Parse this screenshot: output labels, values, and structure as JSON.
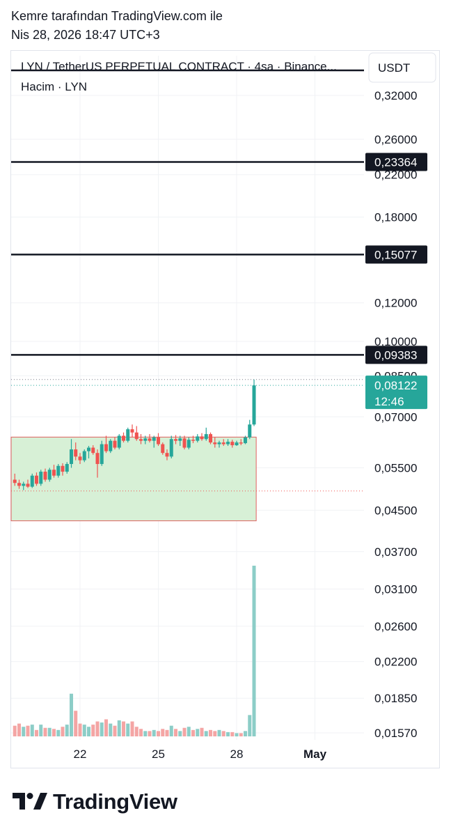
{
  "header": {
    "line1": "Kemre tarafından TradingView.com ile",
    "line2": "Nis 28, 2026 18:47 UTC+3"
  },
  "chart_meta": {
    "symbol_line": "LYN / TetherUS PERPETUAL CONTRACT · 4sa · Binance...",
    "volume_line": "Hacim · LYN",
    "currency": "USDT",
    "brand": "TradingView"
  },
  "colors": {
    "up": "#26a69a",
    "down": "#ef5350",
    "up_volume": "#8ccdc7",
    "down_volume": "#f4a5a4",
    "range_fill": "#d7f0d6",
    "range_border": "#e06060",
    "level_line": "#131722",
    "last_price_bg": "#26a69a"
  },
  "chart_data": {
    "type": "candlestick",
    "y_scale": "log",
    "price_ticks": [
      "0,32000",
      "0,26000",
      "0,22000",
      "0,18000",
      "0,12000",
      "0,10000",
      "0,08500",
      "0,07000",
      "0,05500",
      "0,04500",
      "0,03700",
      "0,03100",
      "0,02600",
      "0,02200",
      "0,01850",
      "0,01570"
    ],
    "price_tick_values": [
      0.32,
      0.26,
      0.22,
      0.18,
      0.12,
      0.1,
      0.085,
      0.07,
      0.055,
      0.045,
      0.037,
      0.031,
      0.026,
      0.022,
      0.0185,
      0.0157
    ],
    "x_ticks": [
      "22",
      "25",
      "28",
      "May"
    ],
    "x_tick_days": [
      22,
      25,
      28,
      31
    ],
    "horizontal_levels": [
      {
        "value": 0.23364,
        "label": "0,23364"
      },
      {
        "value": 0.15077,
        "label": "0,15077"
      },
      {
        "value": 0.09383,
        "label": "0,09383"
      }
    ],
    "last_price": {
      "value": 0.08122,
      "label": "0,08122",
      "countdown": "12:46"
    },
    "session_high_line": 0.0835,
    "range_box": {
      "top": 0.0636,
      "bottom": 0.0428,
      "end_day": 28.75
    },
    "range_bottom_dotted": 0.0493,
    "candles": [
      {
        "day": 19.5,
        "o": 0.052,
        "h": 0.0535,
        "l": 0.0505,
        "c": 0.0512,
        "v": 20
      },
      {
        "day": 19.667,
        "o": 0.0512,
        "h": 0.052,
        "l": 0.0498,
        "c": 0.0505,
        "v": 24
      },
      {
        "day": 19.833,
        "o": 0.0505,
        "h": 0.0515,
        "l": 0.0495,
        "c": 0.051,
        "v": 18
      },
      {
        "day": 20.0,
        "o": 0.051,
        "h": 0.052,
        "l": 0.05,
        "c": 0.0503,
        "v": 20
      },
      {
        "day": 20.167,
        "o": 0.0503,
        "h": 0.0535,
        "l": 0.05,
        "c": 0.053,
        "v": 22
      },
      {
        "day": 20.333,
        "o": 0.053,
        "h": 0.0538,
        "l": 0.0505,
        "c": 0.051,
        "v": 12
      },
      {
        "day": 20.5,
        "o": 0.051,
        "h": 0.0545,
        "l": 0.0505,
        "c": 0.054,
        "v": 22
      },
      {
        "day": 20.667,
        "o": 0.054,
        "h": 0.0548,
        "l": 0.0515,
        "c": 0.052,
        "v": 16
      },
      {
        "day": 20.833,
        "o": 0.052,
        "h": 0.055,
        "l": 0.0515,
        "c": 0.0545,
        "v": 16
      },
      {
        "day": 21.0,
        "o": 0.0545,
        "h": 0.0558,
        "l": 0.0525,
        "c": 0.053,
        "v": 14
      },
      {
        "day": 21.167,
        "o": 0.053,
        "h": 0.056,
        "l": 0.0525,
        "c": 0.0555,
        "v": 12
      },
      {
        "day": 21.333,
        "o": 0.0555,
        "h": 0.0562,
        "l": 0.053,
        "c": 0.054,
        "v": 18
      },
      {
        "day": 21.5,
        "o": 0.054,
        "h": 0.0565,
        "l": 0.0535,
        "c": 0.056,
        "v": 22
      },
      {
        "day": 21.667,
        "o": 0.056,
        "h": 0.063,
        "l": 0.055,
        "c": 0.06,
        "v": 80
      },
      {
        "day": 21.833,
        "o": 0.06,
        "h": 0.062,
        "l": 0.057,
        "c": 0.058,
        "v": 48
      },
      {
        "day": 22.0,
        "o": 0.058,
        "h": 0.059,
        "l": 0.056,
        "c": 0.057,
        "v": 24
      },
      {
        "day": 22.167,
        "o": 0.057,
        "h": 0.06,
        "l": 0.0565,
        "c": 0.0595,
        "v": 22
      },
      {
        "day": 22.333,
        "o": 0.0595,
        "h": 0.061,
        "l": 0.0575,
        "c": 0.0605,
        "v": 18
      },
      {
        "day": 22.5,
        "o": 0.0605,
        "h": 0.0612,
        "l": 0.0585,
        "c": 0.059,
        "v": 22
      },
      {
        "day": 22.667,
        "o": 0.059,
        "h": 0.06,
        "l": 0.0525,
        "c": 0.056,
        "v": 28
      },
      {
        "day": 22.833,
        "o": 0.056,
        "h": 0.0625,
        "l": 0.0555,
        "c": 0.0615,
        "v": 26
      },
      {
        "day": 23.0,
        "o": 0.0615,
        "h": 0.064,
        "l": 0.059,
        "c": 0.0595,
        "v": 32
      },
      {
        "day": 23.167,
        "o": 0.0595,
        "h": 0.063,
        "l": 0.059,
        "c": 0.0625,
        "v": 24
      },
      {
        "day": 23.333,
        "o": 0.0625,
        "h": 0.0635,
        "l": 0.06,
        "c": 0.0605,
        "v": 20
      },
      {
        "day": 23.5,
        "o": 0.0605,
        "h": 0.0645,
        "l": 0.06,
        "c": 0.064,
        "v": 30
      },
      {
        "day": 23.667,
        "o": 0.064,
        "h": 0.065,
        "l": 0.062,
        "c": 0.0625,
        "v": 28
      },
      {
        "day": 23.833,
        "o": 0.0625,
        "h": 0.0665,
        "l": 0.062,
        "c": 0.066,
        "v": 24
      },
      {
        "day": 24.0,
        "o": 0.066,
        "h": 0.0675,
        "l": 0.0635,
        "c": 0.065,
        "v": 28
      },
      {
        "day": 24.167,
        "o": 0.065,
        "h": 0.067,
        "l": 0.0625,
        "c": 0.063,
        "v": 18
      },
      {
        "day": 24.333,
        "o": 0.063,
        "h": 0.0645,
        "l": 0.0615,
        "c": 0.0625,
        "v": 14
      },
      {
        "day": 24.5,
        "o": 0.0625,
        "h": 0.064,
        "l": 0.0615,
        "c": 0.0632,
        "v": 10
      },
      {
        "day": 24.667,
        "o": 0.0632,
        "h": 0.0645,
        "l": 0.062,
        "c": 0.0625,
        "v": 10
      },
      {
        "day": 24.833,
        "o": 0.0625,
        "h": 0.064,
        "l": 0.0605,
        "c": 0.0635,
        "v": 12
      },
      {
        "day": 25.0,
        "o": 0.0635,
        "h": 0.0648,
        "l": 0.061,
        "c": 0.0615,
        "v": 10
      },
      {
        "day": 25.167,
        "o": 0.0615,
        "h": 0.062,
        "l": 0.0585,
        "c": 0.059,
        "v": 14
      },
      {
        "day": 25.333,
        "o": 0.059,
        "h": 0.06,
        "l": 0.057,
        "c": 0.058,
        "v": 12
      },
      {
        "day": 25.5,
        "o": 0.058,
        "h": 0.064,
        "l": 0.0575,
        "c": 0.063,
        "v": 20
      },
      {
        "day": 25.667,
        "o": 0.063,
        "h": 0.0642,
        "l": 0.0615,
        "c": 0.0625,
        "v": 14
      },
      {
        "day": 25.833,
        "o": 0.0625,
        "h": 0.064,
        "l": 0.061,
        "c": 0.0632,
        "v": 10
      },
      {
        "day": 26.0,
        "o": 0.0632,
        "h": 0.064,
        "l": 0.06,
        "c": 0.0605,
        "v": 16
      },
      {
        "day": 26.167,
        "o": 0.0605,
        "h": 0.0635,
        "l": 0.06,
        "c": 0.0628,
        "v": 18
      },
      {
        "day": 26.333,
        "o": 0.0628,
        "h": 0.064,
        "l": 0.0618,
        "c": 0.0625,
        "v": 12
      },
      {
        "day": 26.5,
        "o": 0.0625,
        "h": 0.0645,
        "l": 0.062,
        "c": 0.0638,
        "v": 14
      },
      {
        "day": 26.667,
        "o": 0.0638,
        "h": 0.0648,
        "l": 0.0625,
        "c": 0.063,
        "v": 16
      },
      {
        "day": 26.833,
        "o": 0.063,
        "h": 0.0665,
        "l": 0.0625,
        "c": 0.0645,
        "v": 10
      },
      {
        "day": 27.0,
        "o": 0.0645,
        "h": 0.065,
        "l": 0.0615,
        "c": 0.062,
        "v": 12
      },
      {
        "day": 27.167,
        "o": 0.062,
        "h": 0.0635,
        "l": 0.0605,
        "c": 0.0615,
        "v": 10
      },
      {
        "day": 27.333,
        "o": 0.0615,
        "h": 0.0625,
        "l": 0.0605,
        "c": 0.062,
        "v": 12
      },
      {
        "day": 27.5,
        "o": 0.062,
        "h": 0.063,
        "l": 0.061,
        "c": 0.0615,
        "v": 10
      },
      {
        "day": 27.667,
        "o": 0.0615,
        "h": 0.063,
        "l": 0.061,
        "c": 0.0622,
        "v": 8
      },
      {
        "day": 27.833,
        "o": 0.0622,
        "h": 0.0628,
        "l": 0.0605,
        "c": 0.0612,
        "v": 8
      },
      {
        "day": 28.0,
        "o": 0.0612,
        "h": 0.0625,
        "l": 0.061,
        "c": 0.062,
        "v": 6
      },
      {
        "day": 28.167,
        "o": 0.062,
        "h": 0.063,
        "l": 0.0612,
        "c": 0.0618,
        "v": 6
      },
      {
        "day": 28.333,
        "o": 0.0618,
        "h": 0.064,
        "l": 0.0615,
        "c": 0.0635,
        "v": 10
      },
      {
        "day": 28.5,
        "o": 0.0635,
        "h": 0.069,
        "l": 0.063,
        "c": 0.0675,
        "v": 40
      },
      {
        "day": 28.667,
        "o": 0.0675,
        "h": 0.0835,
        "l": 0.067,
        "c": 0.08122,
        "v": 320
      }
    ]
  }
}
